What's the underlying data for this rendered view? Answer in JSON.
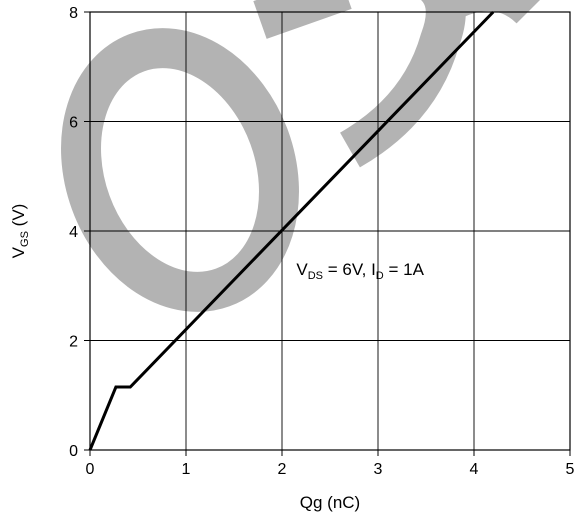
{
  "watermark": {
    "text": "OBS",
    "color": "#b3b3b3"
  },
  "chart_data": {
    "type": "line",
    "xlabel": "Qg (nC)",
    "ylabel": {
      "main": "V",
      "sub": "GS",
      "suffix": " (V)"
    },
    "xlim": [
      0,
      5
    ],
    "ylim": [
      0,
      8
    ],
    "x_ticks": [
      0,
      1,
      2,
      3,
      4,
      5
    ],
    "y_ticks": [
      0,
      2,
      4,
      6,
      8
    ],
    "grid": true,
    "series": [
      {
        "color": "#000000",
        "points": [
          {
            "x": 0,
            "y": 0
          },
          {
            "x": 0.27,
            "y": 1.15
          },
          {
            "x": 0.42,
            "y": 1.15
          },
          {
            "x": 4.2,
            "y": 8.0
          }
        ]
      }
    ],
    "annotation": {
      "parts": [
        {
          "text": "V",
          "sub": false
        },
        {
          "text": "DS",
          "sub": true
        },
        {
          "text": " = 6V, I",
          "sub": false
        },
        {
          "text": "D",
          "sub": true
        },
        {
          "text": " = 1A",
          "sub": false
        }
      ],
      "position_data": {
        "x": 2.15,
        "y": 3.2
      }
    }
  }
}
